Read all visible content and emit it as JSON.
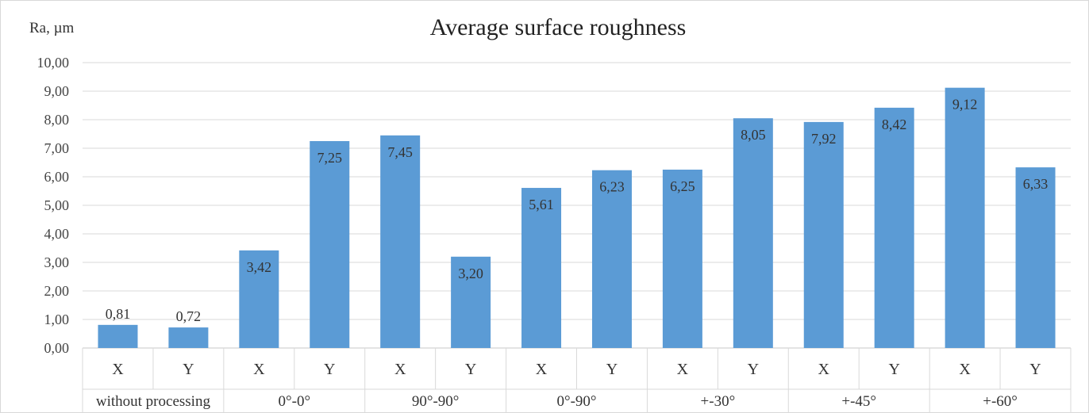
{
  "chart_data": {
    "type": "bar",
    "title": "Average surface roughness",
    "ylabel": "Ra, µm",
    "xlabel": "",
    "ylim": [
      0,
      10
    ],
    "yticks": [
      "0,00",
      "1,00",
      "2,00",
      "3,00",
      "4,00",
      "5,00",
      "6,00",
      "7,00",
      "8,00",
      "9,00",
      "10,00"
    ],
    "grid": true,
    "bar_color": "#5b9bd5",
    "groups": [
      {
        "label": "without processing",
        "categories": [
          "X",
          "Y"
        ],
        "values": [
          0.81,
          0.72
        ],
        "value_labels": [
          "0,81",
          "0,72"
        ]
      },
      {
        "label": "0°-0°",
        "categories": [
          "X",
          "Y"
        ],
        "values": [
          3.42,
          7.25
        ],
        "value_labels": [
          "3,42",
          "7,25"
        ]
      },
      {
        "label": "90°-90°",
        "categories": [
          "X",
          "Y"
        ],
        "values": [
          7.45,
          3.2
        ],
        "value_labels": [
          "7,45",
          "3,20"
        ]
      },
      {
        "label": "0°-90°",
        "categories": [
          "X",
          "Y"
        ],
        "values": [
          5.61,
          6.23
        ],
        "value_labels": [
          "5,61",
          "6,23"
        ]
      },
      {
        "label": "+-30°",
        "categories": [
          "X",
          "Y"
        ],
        "values": [
          6.25,
          8.05
        ],
        "value_labels": [
          "6,25",
          "8,05"
        ]
      },
      {
        "label": "+-45°",
        "categories": [
          "X",
          "Y"
        ],
        "values": [
          7.92,
          8.42
        ],
        "value_labels": [
          "7,92",
          "8,42"
        ]
      },
      {
        "label": "+-60°",
        "categories": [
          "X",
          "Y"
        ],
        "values": [
          9.12,
          6.33
        ],
        "value_labels": [
          "9,12",
          "6,33"
        ]
      }
    ]
  }
}
